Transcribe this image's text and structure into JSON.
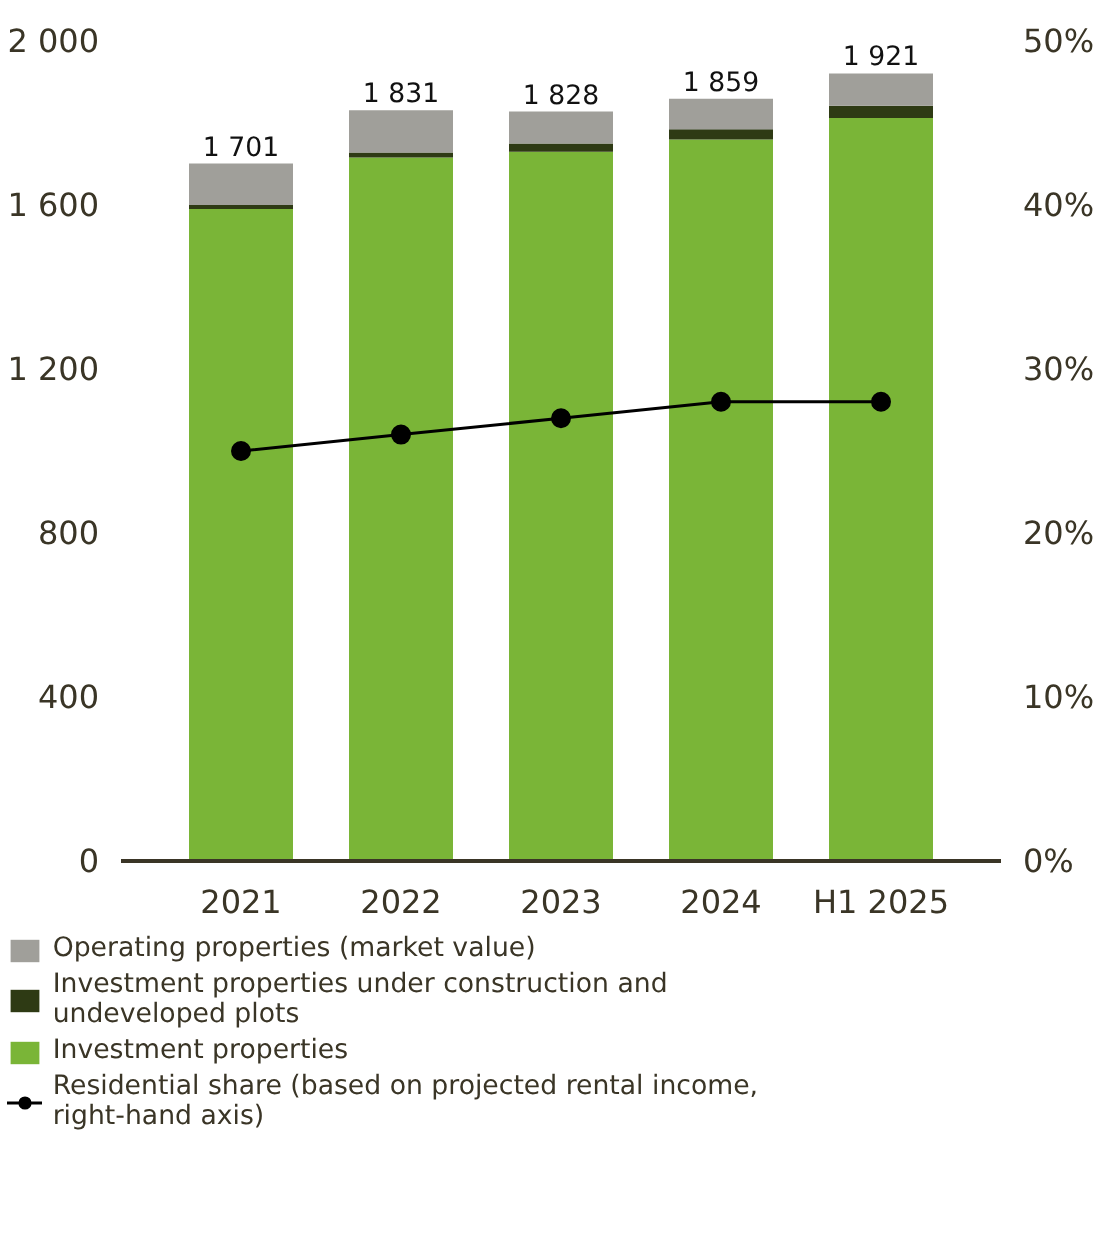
{
  "chart_data": {
    "type": "bar",
    "stacked": true,
    "categories": [
      "2021",
      "2022",
      "2023",
      "2024",
      "H1 2025"
    ],
    "series": [
      {
        "name": "Investment properties",
        "color": "#7ab537",
        "values": [
          1590,
          1716,
          1730,
          1760,
          1812
        ]
      },
      {
        "name": "Investment properties under construction and undeveloped plots",
        "color": "#2e3a14",
        "values": [
          10,
          12,
          20,
          25,
          30
        ]
      },
      {
        "name": "Operating properties (market value)",
        "color": "#a09f9a",
        "values": [
          101,
          103,
          78,
          74,
          79
        ]
      },
      {
        "name": "Residential share (based on projected rental income, right-hand axis)",
        "type": "line",
        "axis": "y2",
        "color": "#000000",
        "marker": "circle",
        "values": [
          25,
          26,
          27,
          28,
          28
        ]
      }
    ],
    "totals": [
      "1 701",
      "1 831",
      "1 828",
      "1 859",
      "1 921"
    ],
    "ylim": [
      0,
      2000
    ],
    "yticks": [
      0,
      {
        "value": 400,
        "label": "400"
      },
      {
        "value": 800,
        "label": "800"
      },
      {
        "value": 1200,
        "label": "1 200"
      },
      {
        "value": 1600,
        "label": "1 600"
      },
      {
        "value": 2000,
        "label": "2 000"
      }
    ],
    "y2lim": [
      0,
      50
    ],
    "y2ticks": [
      {
        "value": 0,
        "label": "0%"
      },
      {
        "value": 10,
        "label": "10%"
      },
      {
        "value": 20,
        "label": "20%"
      },
      {
        "value": 30,
        "label": "30%"
      },
      {
        "value": 40,
        "label": "40%"
      },
      {
        "value": 50,
        "label": "50%"
      }
    ],
    "grid": false,
    "legend": "bottom"
  }
}
